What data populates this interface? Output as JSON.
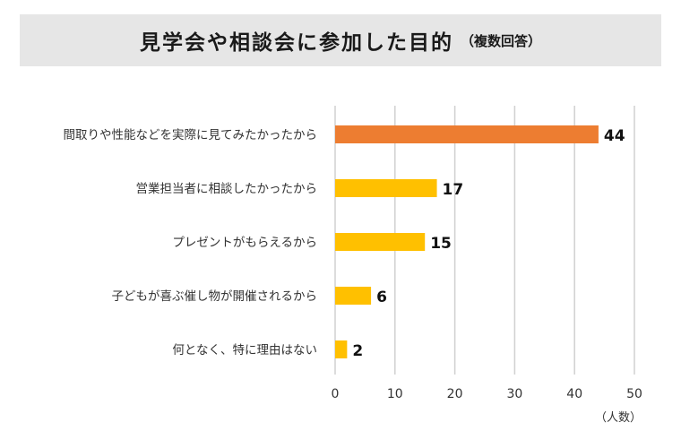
{
  "title": {
    "main": "見学会や相談会に参加した目的",
    "sub": "（複数回答）"
  },
  "chart_data": {
    "type": "bar",
    "orientation": "horizontal",
    "categories": [
      "間取りや性能などを実際に見てみたかったから",
      "営業担当者に相談したかったから",
      "プレゼントがもらえるから",
      "子どもが喜ぶ催し物が開催されるから",
      "何となく、特に理由はない"
    ],
    "values": [
      44,
      17,
      15,
      6,
      2
    ],
    "data_labels": [
      "44",
      "17",
      "15",
      "6",
      "2"
    ],
    "xlim": [
      0,
      50
    ],
    "ticks": [
      "0",
      "10",
      "20",
      "30",
      "40",
      "50"
    ],
    "xlabel": "（人数）",
    "grid": true,
    "colors": {
      "highlight": "#ED7D31",
      "default": "#FFC000",
      "grid": "#d0d0d0",
      "title_band": "#e6e6e6"
    }
  }
}
